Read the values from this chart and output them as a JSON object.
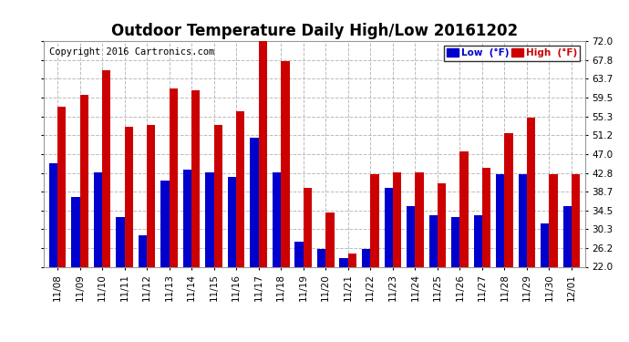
{
  "title": "Outdoor Temperature Daily High/Low 20161202",
  "copyright": "Copyright 2016 Cartronics.com",
  "legend_low_label": "Low  (°F)",
  "legend_high_label": "High  (°F)",
  "dates": [
    "11/08",
    "11/09",
    "11/10",
    "11/11",
    "11/12",
    "11/13",
    "11/14",
    "11/15",
    "11/16",
    "11/17",
    "11/18",
    "11/19",
    "11/20",
    "11/21",
    "11/22",
    "11/23",
    "11/24",
    "11/25",
    "11/26",
    "11/27",
    "11/28",
    "11/29",
    "11/30",
    "12/01"
  ],
  "highs": [
    57.5,
    60.0,
    65.5,
    53.0,
    53.5,
    61.5,
    61.0,
    53.5,
    56.5,
    72.0,
    67.5,
    39.5,
    34.0,
    25.0,
    42.5,
    43.0,
    43.0,
    40.5,
    47.5,
    44.0,
    51.5,
    55.0,
    42.5,
    42.5
  ],
  "lows": [
    45.0,
    37.5,
    43.0,
    33.0,
    29.0,
    41.0,
    43.5,
    43.0,
    42.0,
    50.5,
    43.0,
    27.5,
    26.0,
    24.0,
    26.0,
    39.5,
    35.5,
    33.5,
    33.0,
    33.5,
    42.5,
    42.5,
    31.5,
    35.5
  ],
  "ylim": [
    22.0,
    72.0
  ],
  "yticks": [
    22.0,
    26.2,
    30.3,
    34.5,
    38.7,
    42.8,
    47.0,
    51.2,
    55.3,
    59.5,
    63.7,
    67.8,
    72.0
  ],
  "bar_width": 0.38,
  "low_color": "#0000cc",
  "high_color": "#cc0000",
  "bg_color": "#ffffff",
  "grid_color": "#bbbbbb",
  "title_fontsize": 12,
  "tick_fontsize": 7.5,
  "copyright_fontsize": 7.5
}
